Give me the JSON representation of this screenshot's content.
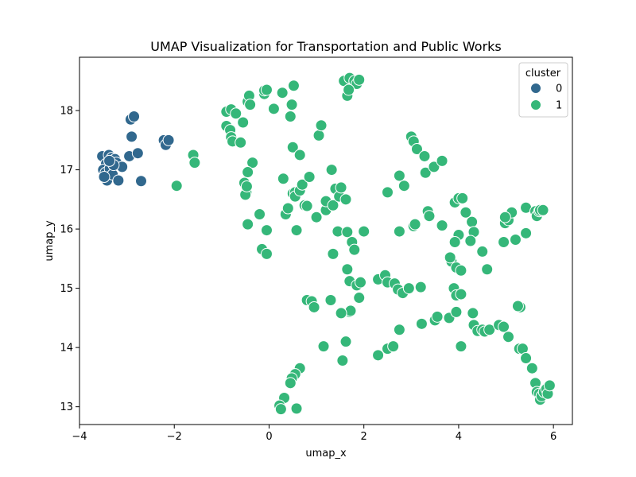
{
  "chart_data": {
    "type": "scatter",
    "title": "UMAP Visualization for Transportation and Public Works",
    "xlabel": "umap_x",
    "ylabel": "umap_y",
    "xlim": [
      -4.0,
      6.4
    ],
    "ylim": [
      12.7,
      18.9
    ],
    "xticks": [
      -4,
      -2,
      0,
      2,
      4,
      6
    ],
    "yticks": [
      13,
      14,
      15,
      16,
      17,
      18
    ],
    "grid": false,
    "legend": {
      "title": "cluster",
      "placement": "top-right"
    },
    "series": [
      {
        "name": "0",
        "color": "#31688e",
        "points": [
          [
            -3.52,
            17.23
          ],
          [
            -3.44,
            17.1
          ],
          [
            -3.38,
            17.25
          ],
          [
            -3.32,
            17.2
          ],
          [
            -3.25,
            17.18
          ],
          [
            -3.5,
            17.0
          ],
          [
            -3.45,
            16.95
          ],
          [
            -3.42,
            16.82
          ],
          [
            -3.36,
            17.02
          ],
          [
            -3.3,
            16.92
          ],
          [
            -3.22,
            17.12
          ],
          [
            -3.18,
            16.82
          ],
          [
            -3.1,
            17.05
          ],
          [
            -3.48,
            16.88
          ],
          [
            -3.28,
            17.08
          ],
          [
            -3.37,
            17.15
          ],
          [
            -2.95,
            17.23
          ],
          [
            -2.92,
            17.85
          ],
          [
            -2.85,
            17.9
          ],
          [
            -2.9,
            17.56
          ],
          [
            -2.77,
            17.28
          ],
          [
            -2.7,
            16.81
          ],
          [
            -2.22,
            17.5
          ],
          [
            -2.18,
            17.42
          ],
          [
            -2.12,
            17.5
          ]
        ]
      },
      {
        "name": "1",
        "color": "#35b779",
        "points": [
          [
            -1.6,
            17.25
          ],
          [
            -1.57,
            17.12
          ],
          [
            -1.95,
            16.73
          ],
          [
            -0.9,
            17.98
          ],
          [
            -0.8,
            18.02
          ],
          [
            -0.7,
            17.95
          ],
          [
            -0.9,
            17.74
          ],
          [
            -0.82,
            17.67
          ],
          [
            -0.8,
            17.55
          ],
          [
            -0.77,
            17.48
          ],
          [
            -0.6,
            17.46
          ],
          [
            -0.45,
            18.15
          ],
          [
            -0.42,
            18.25
          ],
          [
            -0.4,
            18.1
          ],
          [
            -0.55,
            17.8
          ],
          [
            -0.35,
            17.12
          ],
          [
            -0.45,
            16.96
          ],
          [
            -0.52,
            16.78
          ],
          [
            -0.48,
            16.62
          ],
          [
            -0.5,
            16.58
          ],
          [
            -0.47,
            16.72
          ],
          [
            -0.45,
            16.08
          ],
          [
            -0.1,
            18.28
          ],
          [
            -0.1,
            18.34
          ],
          [
            -0.05,
            18.35
          ],
          [
            0.1,
            18.03
          ],
          [
            0.28,
            18.3
          ],
          [
            0.45,
            17.9
          ],
          [
            0.48,
            18.1
          ],
          [
            0.5,
            17.38
          ],
          [
            0.52,
            18.42
          ],
          [
            0.65,
            17.25
          ],
          [
            0.3,
            16.85
          ],
          [
            0.5,
            16.6
          ],
          [
            0.55,
            16.62
          ],
          [
            0.55,
            16.55
          ],
          [
            0.65,
            16.65
          ],
          [
            0.7,
            16.75
          ],
          [
            0.75,
            16.4
          ],
          [
            0.8,
            16.39
          ],
          [
            0.85,
            16.88
          ],
          [
            1.05,
            17.58
          ],
          [
            1.1,
            17.75
          ],
          [
            1.0,
            16.2
          ],
          [
            -0.2,
            16.25
          ],
          [
            -0.05,
            15.98
          ],
          [
            0.35,
            16.25
          ],
          [
            0.4,
            16.35
          ],
          [
            0.58,
            15.98
          ],
          [
            -0.15,
            15.66
          ],
          [
            -0.05,
            15.58
          ],
          [
            1.2,
            16.32
          ],
          [
            1.2,
            16.47
          ],
          [
            1.32,
            17.0
          ],
          [
            1.35,
            16.4
          ],
          [
            1.4,
            16.68
          ],
          [
            1.48,
            16.55
          ],
          [
            1.52,
            16.7
          ],
          [
            1.62,
            16.5
          ],
          [
            1.45,
            15.96
          ],
          [
            1.65,
            15.95
          ],
          [
            1.75,
            15.78
          ],
          [
            1.8,
            15.65
          ],
          [
            1.35,
            15.58
          ],
          [
            2.0,
            15.96
          ],
          [
            1.65,
            15.32
          ],
          [
            1.7,
            15.12
          ],
          [
            1.85,
            15.05
          ],
          [
            1.93,
            15.1
          ],
          [
            1.9,
            14.84
          ],
          [
            1.7,
            14.6
          ],
          [
            1.72,
            14.62
          ],
          [
            1.52,
            14.58
          ],
          [
            0.8,
            14.8
          ],
          [
            0.9,
            14.78
          ],
          [
            0.95,
            14.68
          ],
          [
            1.3,
            14.8
          ],
          [
            1.15,
            14.02
          ],
          [
            1.62,
            14.1
          ],
          [
            1.55,
            13.78
          ],
          [
            0.65,
            13.65
          ],
          [
            0.55,
            13.55
          ],
          [
            0.48,
            13.48
          ],
          [
            0.45,
            13.4
          ],
          [
            0.32,
            13.15
          ],
          [
            0.22,
            13.02
          ],
          [
            0.25,
            12.96
          ],
          [
            0.58,
            12.97
          ],
          [
            1.58,
            18.5
          ],
          [
            1.7,
            18.55
          ],
          [
            1.8,
            18.5
          ],
          [
            1.85,
            18.45
          ],
          [
            1.9,
            18.52
          ],
          [
            1.65,
            18.25
          ],
          [
            1.68,
            18.35
          ],
          [
            2.3,
            15.15
          ],
          [
            2.45,
            15.22
          ],
          [
            2.5,
            15.1
          ],
          [
            2.65,
            15.08
          ],
          [
            2.72,
            14.98
          ],
          [
            2.82,
            14.92
          ],
          [
            2.95,
            15.0
          ],
          [
            3.2,
            15.02
          ],
          [
            2.5,
            13.98
          ],
          [
            2.62,
            14.02
          ],
          [
            2.3,
            13.87
          ],
          [
            2.75,
            14.3
          ],
          [
            2.75,
            15.96
          ],
          [
            2.5,
            16.62
          ],
          [
            2.75,
            16.9
          ],
          [
            2.85,
            16.73
          ],
          [
            3.0,
            17.56
          ],
          [
            3.05,
            17.48
          ],
          [
            3.12,
            17.35
          ],
          [
            3.28,
            17.23
          ],
          [
            3.3,
            16.95
          ],
          [
            3.48,
            17.05
          ],
          [
            3.65,
            17.15
          ],
          [
            3.35,
            16.3
          ],
          [
            3.38,
            16.22
          ],
          [
            3.05,
            16.05
          ],
          [
            3.08,
            16.08
          ],
          [
            3.65,
            16.06
          ],
          [
            3.92,
            16.45
          ],
          [
            4.0,
            16.52
          ],
          [
            4.08,
            16.52
          ],
          [
            4.15,
            16.28
          ],
          [
            4.28,
            16.12
          ],
          [
            4.32,
            15.95
          ],
          [
            4.25,
            15.8
          ],
          [
            4.0,
            15.9
          ],
          [
            3.92,
            15.78
          ],
          [
            3.85,
            15.45
          ],
          [
            3.82,
            15.52
          ],
          [
            3.95,
            15.35
          ],
          [
            4.05,
            15.3
          ],
          [
            4.5,
            15.62
          ],
          [
            4.6,
            15.32
          ],
          [
            3.9,
            15.0
          ],
          [
            3.95,
            14.88
          ],
          [
            4.05,
            14.9
          ],
          [
            3.22,
            14.4
          ],
          [
            3.5,
            14.46
          ],
          [
            3.55,
            14.52
          ],
          [
            3.8,
            14.5
          ],
          [
            4.05,
            14.02
          ],
          [
            3.95,
            14.6
          ],
          [
            4.32,
            14.38
          ],
          [
            4.3,
            14.58
          ],
          [
            4.4,
            14.28
          ],
          [
            4.5,
            14.3
          ],
          [
            4.55,
            14.27
          ],
          [
            4.65,
            14.3
          ],
          [
            4.85,
            14.38
          ],
          [
            4.95,
            14.35
          ],
          [
            5.05,
            14.18
          ],
          [
            4.95,
            15.78
          ],
          [
            4.98,
            16.1
          ],
          [
            5.05,
            16.15
          ],
          [
            5.12,
            16.28
          ],
          [
            4.98,
            16.2
          ],
          [
            5.2,
            15.82
          ],
          [
            5.42,
            15.93
          ],
          [
            5.42,
            16.36
          ],
          [
            5.62,
            16.3
          ],
          [
            5.65,
            16.22
          ],
          [
            5.7,
            16.3
          ],
          [
            5.72,
            16.32
          ],
          [
            5.78,
            16.32
          ],
          [
            5.28,
            13.98
          ],
          [
            5.3,
            14.68
          ],
          [
            5.25,
            14.7
          ],
          [
            5.35,
            13.98
          ],
          [
            5.42,
            13.82
          ],
          [
            5.55,
            13.65
          ],
          [
            5.62,
            13.4
          ],
          [
            5.65,
            13.25
          ],
          [
            5.7,
            13.22
          ],
          [
            5.72,
            13.12
          ],
          [
            5.75,
            13.18
          ],
          [
            5.8,
            13.25
          ],
          [
            5.85,
            13.3
          ],
          [
            5.88,
            13.22
          ],
          [
            5.92,
            13.36
          ]
        ]
      }
    ]
  }
}
